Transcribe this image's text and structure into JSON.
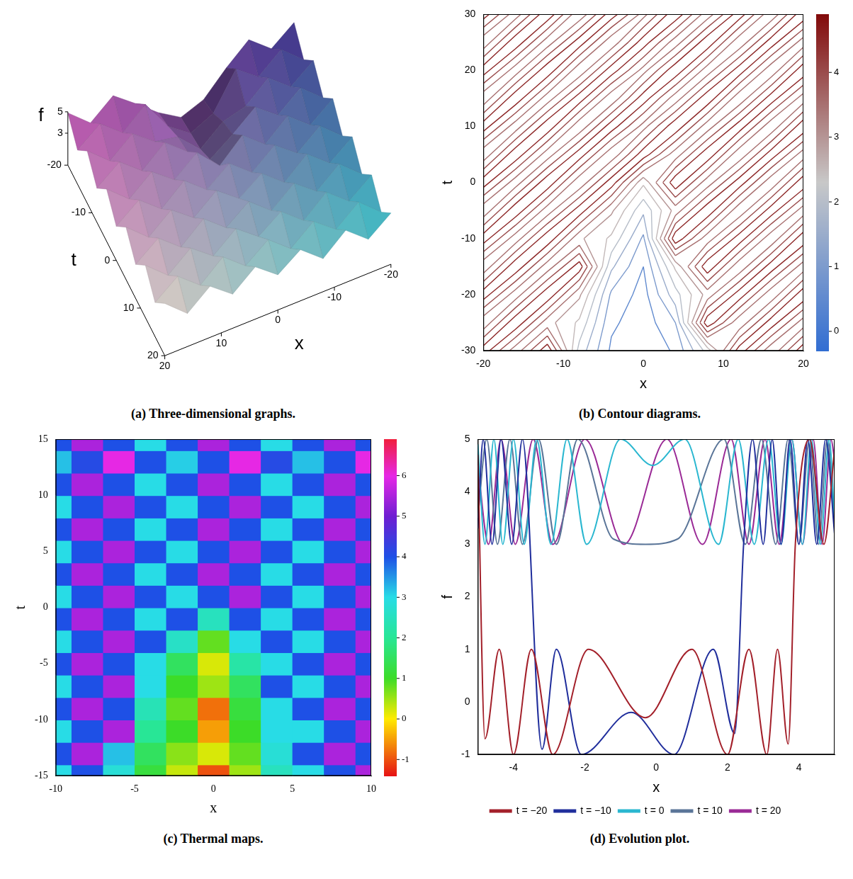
{
  "chart_data": [
    {
      "type": "surface",
      "caption": "(a) Three-dimensional graphs.",
      "x_label": "x",
      "y_label": "t",
      "z_label": "f",
      "xlim": [
        -20,
        20
      ],
      "xticks": [
        -20,
        -10,
        0,
        10,
        20
      ],
      "ylim": [
        -20,
        20
      ],
      "yticks": [
        -20,
        -10,
        0,
        10,
        20
      ],
      "zlim": [
        0,
        5
      ],
      "zticks": [
        3,
        5
      ],
      "x": [
        -20,
        -16,
        -12,
        -8,
        -4,
        0,
        4,
        8,
        12,
        16,
        20
      ],
      "y": [
        -20,
        -16,
        -12,
        -8,
        -4,
        0,
        4,
        8,
        12,
        16,
        20
      ],
      "z": [
        [
          4.8,
          3.2,
          4.9,
          3.1,
          1.0,
          0.2,
          1.5,
          3.2,
          4.8,
          3.1,
          4.9
        ],
        [
          3.1,
          4.9,
          3.2,
          4.8,
          1.5,
          0.5,
          2.0,
          4.9,
          3.1,
          4.8,
          3.2
        ],
        [
          4.8,
          3.2,
          4.9,
          3.1,
          2.5,
          0.8,
          2.8,
          3.2,
          4.8,
          3.1,
          4.9
        ],
        [
          3.1,
          4.9,
          3.2,
          4.8,
          3.1,
          1.6,
          3.2,
          4.9,
          3.1,
          4.8,
          3.2
        ],
        [
          4.8,
          3.2,
          4.9,
          3.1,
          4.8,
          2.8,
          4.9,
          3.2,
          4.8,
          3.1,
          4.9
        ],
        [
          3.1,
          4.9,
          3.2,
          4.8,
          3.1,
          4.8,
          3.2,
          4.9,
          3.1,
          4.8,
          3.2
        ],
        [
          4.8,
          3.2,
          4.9,
          3.1,
          4.8,
          3.3,
          4.9,
          3.2,
          4.8,
          3.1,
          4.9
        ],
        [
          3.1,
          4.9,
          3.2,
          4.8,
          3.1,
          4.8,
          3.2,
          4.9,
          3.1,
          4.8,
          3.2
        ],
        [
          4.8,
          3.2,
          4.9,
          3.1,
          4.8,
          3.3,
          4.9,
          3.2,
          4.8,
          3.1,
          4.9
        ],
        [
          3.1,
          4.9,
          3.2,
          4.8,
          3.1,
          4.8,
          3.2,
          4.9,
          3.1,
          4.8,
          3.2
        ],
        [
          4.8,
          3.2,
          4.9,
          3.1,
          4.8,
          3.3,
          4.9,
          3.2,
          4.8,
          3.1,
          4.9
        ]
      ]
    },
    {
      "type": "contour",
      "caption": "(b) Contour diagrams.",
      "x_label": "x",
      "y_label": "t",
      "grid": false,
      "xlim": [
        -20,
        20
      ],
      "xticks": [
        -20,
        -10,
        0,
        10,
        20
      ],
      "ylim": [
        -30,
        30
      ],
      "yticks": [
        -30,
        -20,
        -10,
        0,
        10,
        20,
        30
      ],
      "levels": [
        0,
        0.5,
        1,
        1.5,
        2,
        2.5,
        3,
        3.5,
        4,
        4.5
      ],
      "colorbar": {
        "range": [
          -0.3,
          4.9
        ],
        "ticks": [
          0,
          1,
          2,
          3,
          4
        ]
      },
      "x": [
        -20,
        -16,
        -12,
        -8,
        -4,
        0,
        4,
        8,
        12,
        16,
        20
      ],
      "y": [
        -30,
        -25,
        -20,
        -15,
        -10,
        -5,
        0,
        5,
        10,
        15,
        20,
        25,
        30
      ],
      "z": [
        [
          4.8,
          3.2,
          4.9,
          1.8,
          0.4,
          0.0,
          0.6,
          2.2,
          4.8,
          3.1,
          4.9
        ],
        [
          3.1,
          4.9,
          3.2,
          2.4,
          0.6,
          0.2,
          1.0,
          4.9,
          3.1,
          4.8,
          3.2
        ],
        [
          4.8,
          3.2,
          4.9,
          3.1,
          0.9,
          0.3,
          1.8,
          3.2,
          4.8,
          3.1,
          4.9
        ],
        [
          3.1,
          4.9,
          3.2,
          4.8,
          1.6,
          0.5,
          2.6,
          4.9,
          3.1,
          4.8,
          3.2
        ],
        [
          4.8,
          3.2,
          4.9,
          3.1,
          2.4,
          0.9,
          4.9,
          3.2,
          4.8,
          3.1,
          4.9
        ],
        [
          3.1,
          4.9,
          3.2,
          4.8,
          3.1,
          1.6,
          3.2,
          4.9,
          3.1,
          4.8,
          3.2
        ],
        [
          4.8,
          3.2,
          4.9,
          3.1,
          4.8,
          2.6,
          4.9,
          3.2,
          4.8,
          3.1,
          4.9
        ],
        [
          3.1,
          4.9,
          3.2,
          4.8,
          3.1,
          4.8,
          3.2,
          4.9,
          3.1,
          4.8,
          3.2
        ],
        [
          4.8,
          3.2,
          4.9,
          3.1,
          4.8,
          3.3,
          4.9,
          3.2,
          4.8,
          3.1,
          4.9
        ],
        [
          3.1,
          4.9,
          3.2,
          4.8,
          3.1,
          4.8,
          3.2,
          4.9,
          3.1,
          4.8,
          3.2
        ],
        [
          4.8,
          3.2,
          4.9,
          3.1,
          4.8,
          3.3,
          4.9,
          3.2,
          4.8,
          3.1,
          4.9
        ],
        [
          3.1,
          4.9,
          3.2,
          4.8,
          3.1,
          4.8,
          3.2,
          4.9,
          3.1,
          4.8,
          3.2
        ],
        [
          4.8,
          3.2,
          4.9,
          3.1,
          4.8,
          3.3,
          4.9,
          3.2,
          4.8,
          3.1,
          4.9
        ]
      ]
    },
    {
      "type": "heatmap",
      "caption": "(c) Thermal maps.",
      "x_label": "x",
      "y_label": "t",
      "grid": false,
      "xlim": [
        -10,
        10
      ],
      "xticks": [
        -10,
        -5,
        0,
        5,
        10
      ],
      "ylim": [
        -15,
        15
      ],
      "yticks": [
        -15,
        -10,
        -5,
        0,
        5,
        10,
        15
      ],
      "colorbar": {
        "range": [
          -1.4,
          6.9
        ],
        "ticks": [
          -1,
          0,
          1,
          2,
          3,
          4,
          5,
          6
        ]
      },
      "x": [
        -10,
        -8,
        -6,
        -4,
        -2,
        0,
        2,
        4,
        6,
        8,
        10
      ],
      "y": [
        -15,
        -13,
        -11,
        -9,
        -7,
        -5,
        -3,
        -1,
        1,
        3,
        5,
        7,
        9,
        11,
        13,
        15
      ],
      "z": [
        [
          3.0,
          4.0,
          2.8,
          1.2,
          0.3,
          -1.0,
          0.5,
          2.5,
          3.0,
          4.0,
          5.5
        ],
        [
          4.0,
          5.5,
          3.2,
          1.5,
          0.6,
          0.2,
          0.8,
          2.8,
          4.0,
          5.5,
          4.0
        ],
        [
          3.0,
          4.0,
          5.5,
          2.0,
          1.0,
          -0.5,
          1.0,
          3.0,
          3.0,
          4.0,
          5.5
        ],
        [
          4.0,
          5.5,
          4.0,
          2.4,
          0.8,
          -0.8,
          1.2,
          3.0,
          4.0,
          5.5,
          4.0
        ],
        [
          3.0,
          4.0,
          5.5,
          3.0,
          1.0,
          0.5,
          1.5,
          4.0,
          3.0,
          4.0,
          5.5
        ],
        [
          4.0,
          5.5,
          4.0,
          3.0,
          1.5,
          0.2,
          2.2,
          3.0,
          4.0,
          5.5,
          4.0
        ],
        [
          3.0,
          4.0,
          5.5,
          4.0,
          2.6,
          0.8,
          3.0,
          4.0,
          3.0,
          4.0,
          5.5
        ],
        [
          4.0,
          5.5,
          4.0,
          3.0,
          4.0,
          2.5,
          4.0,
          3.0,
          4.0,
          5.5,
          4.0
        ],
        [
          3.0,
          4.0,
          5.5,
          4.0,
          3.0,
          4.0,
          5.5,
          4.0,
          3.0,
          4.0,
          5.5
        ],
        [
          4.0,
          5.5,
          4.0,
          3.0,
          4.0,
          5.5,
          4.0,
          3.0,
          4.0,
          5.5,
          4.0
        ],
        [
          3.0,
          4.0,
          5.5,
          4.0,
          3.0,
          4.0,
          5.5,
          4.0,
          3.0,
          4.0,
          5.5
        ],
        [
          4.0,
          5.5,
          4.0,
          3.0,
          4.0,
          5.5,
          4.0,
          3.0,
          4.0,
          5.5,
          4.0
        ],
        [
          3.0,
          4.0,
          5.5,
          4.0,
          3.0,
          4.0,
          5.5,
          4.0,
          3.0,
          4.0,
          5.5
        ],
        [
          4.0,
          5.5,
          4.0,
          3.0,
          4.0,
          5.5,
          4.0,
          3.0,
          4.0,
          5.5,
          4.0
        ],
        [
          3.2,
          4.1,
          6.0,
          4.0,
          3.1,
          4.0,
          6.0,
          4.1,
          3.2,
          4.0,
          6.0
        ],
        [
          4.0,
          5.5,
          4.0,
          3.0,
          4.0,
          5.5,
          4.0,
          3.0,
          4.0,
          5.5,
          4.0
        ]
      ]
    },
    {
      "type": "line",
      "caption": "(d) Evolution plot.",
      "x_label": "x",
      "y_label": "f",
      "grid": false,
      "legend": "bottom",
      "xlim": [
        -5,
        5
      ],
      "xticks": [
        -4,
        -2,
        0,
        2,
        4
      ],
      "ylim": [
        -1,
        5
      ],
      "yticks": [
        -1,
        0,
        1,
        2,
        3,
        4,
        5
      ],
      "series": [
        {
          "name": "t = −20",
          "color": "#a3202a",
          "x": [
            -5,
            -4.8,
            -4.4,
            -4.0,
            -3.5,
            -2.9,
            -1.9,
            -0.3,
            1.0,
            2.0,
            2.6,
            3.1,
            3.4,
            3.7,
            3.9,
            4.3,
            4.7,
            5
          ],
          "values": [
            4.7,
            -0.7,
            1,
            -1,
            1,
            -1,
            1,
            -0.3,
            1,
            -1,
            1,
            -1,
            1,
            -0.8,
            3.0,
            5,
            3,
            4.8
          ]
        },
        {
          "name": "t = −10",
          "color": "#202e9c",
          "x": [
            -5,
            -4.85,
            -4.6,
            -4.35,
            -4.05,
            -3.75,
            -3.2,
            -2.8,
            -2.1,
            -0.7,
            0.5,
            1.6,
            2.2,
            2.45,
            2.7,
            3.0,
            3.25,
            3.5,
            3.75,
            4.0,
            4.25,
            4.5,
            4.75,
            5
          ],
          "values": [
            3.3,
            5,
            3,
            5,
            3,
            5,
            -0.9,
            1,
            -1,
            -0.2,
            -1,
            1,
            -0.6,
            3,
            5,
            3,
            5,
            3,
            5,
            3,
            5,
            3,
            5,
            3.2
          ]
        },
        {
          "name": "t = 0",
          "color": "#2ab7d0",
          "x": [
            -5,
            -4.8,
            -4.55,
            -4.3,
            -4.0,
            -3.7,
            -3.35,
            -2.95,
            -2.5,
            -1.95,
            -1.0,
            -0.1,
            0.8,
            1.75,
            2.3,
            2.75,
            3.15,
            3.5,
            3.8,
            4.1,
            4.35,
            4.6,
            4.85,
            5
          ],
          "values": [
            4.9,
            3,
            5,
            3,
            5,
            3,
            5,
            3,
            5,
            3,
            5,
            4.5,
            5,
            3,
            5,
            3,
            5,
            3,
            5,
            3,
            5,
            3,
            5,
            3.4
          ]
        },
        {
          "name": "t = 10",
          "color": "#5a7598",
          "x": [
            -5,
            -4.75,
            -4.45,
            -4.1,
            -3.75,
            -3.3,
            -2.8,
            -2.2,
            -1.2,
            -0.3,
            0.6,
            1.9,
            2.5,
            2.95,
            3.35,
            3.7,
            4.0,
            4.3,
            4.55,
            4.8,
            5
          ],
          "values": [
            3.5,
            5,
            3,
            5,
            3,
            5,
            3,
            5,
            3.1,
            3,
            3.1,
            5,
            3,
            5,
            3,
            5,
            3,
            5,
            3,
            5,
            3.3
          ]
        },
        {
          "name": "t = 20",
          "color": "#9a2a96",
          "x": [
            -5,
            -4.7,
            -4.35,
            -3.95,
            -3.45,
            -2.9,
            -2.0,
            -0.9,
            0.3,
            1.3,
            2.1,
            2.6,
            3.05,
            3.45,
            3.8,
            4.1,
            4.4,
            4.65,
            4.9,
            5
          ],
          "values": [
            4.5,
            3,
            5,
            3,
            5,
            3,
            5,
            3,
            5,
            3,
            5,
            3,
            5,
            3,
            5,
            3,
            5,
            3,
            5,
            4.6
          ]
        }
      ]
    }
  ]
}
